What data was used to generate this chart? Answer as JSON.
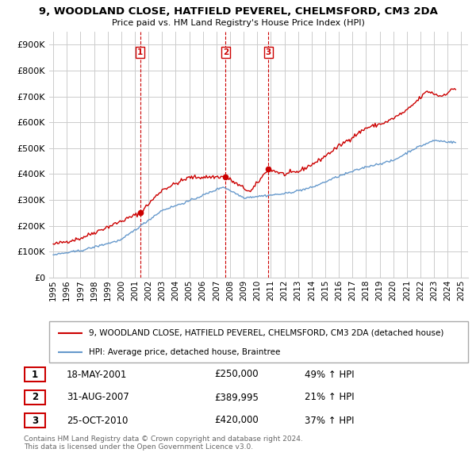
{
  "title": "9, WOODLAND CLOSE, HATFIELD PEVEREL, CHELMSFORD, CM3 2DA",
  "subtitle": "Price paid vs. HM Land Registry's House Price Index (HPI)",
  "ylabel_ticks": [
    "£0",
    "£100K",
    "£200K",
    "£300K",
    "£400K",
    "£500K",
    "£600K",
    "£700K",
    "£800K",
    "£900K"
  ],
  "ytick_values": [
    0,
    100000,
    200000,
    300000,
    400000,
    500000,
    600000,
    700000,
    800000,
    900000
  ],
  "ylim": [
    0,
    950000
  ],
  "red_color": "#cc0000",
  "blue_color": "#6699cc",
  "background_color": "#ffffff",
  "grid_color": "#cccccc",
  "transactions": [
    {
      "num": 1,
      "date_x": 2001.38,
      "price": 250000,
      "label": "18-MAY-2001",
      "price_str": "£250,000",
      "hpi_str": "49% ↑ HPI"
    },
    {
      "num": 2,
      "date_x": 2007.67,
      "price": 389995,
      "label": "31-AUG-2007",
      "price_str": "£389,995",
      "hpi_str": "21% ↑ HPI"
    },
    {
      "num": 3,
      "date_x": 2010.82,
      "price": 420000,
      "label": "25-OCT-2010",
      "price_str": "£420,000",
      "hpi_str": "37% ↑ HPI"
    }
  ],
  "legend_red_label": "9, WOODLAND CLOSE, HATFIELD PEVEREL, CHELMSFORD, CM3 2DA (detached house)",
  "legend_blue_label": "HPI: Average price, detached house, Braintree",
  "footer": "Contains HM Land Registry data © Crown copyright and database right 2024.\nThis data is licensed under the Open Government Licence v3.0.",
  "xtick_years": [
    1995,
    1996,
    1997,
    1998,
    1999,
    2000,
    2001,
    2002,
    2003,
    2004,
    2005,
    2006,
    2007,
    2008,
    2009,
    2010,
    2011,
    2012,
    2013,
    2014,
    2015,
    2016,
    2017,
    2018,
    2019,
    2020,
    2021,
    2022,
    2023,
    2024,
    2025
  ]
}
